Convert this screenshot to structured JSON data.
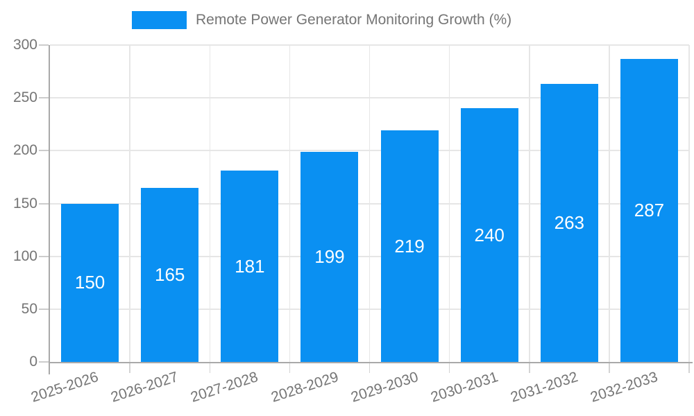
{
  "chart_data": {
    "type": "bar",
    "title": "Remote Power Generator Monitoring Growth (%)",
    "categories": [
      "2025-2026",
      "2026-2027",
      "2027-2028",
      "2028-2029",
      "2029-2030",
      "2030-2031",
      "2031-2032",
      "2032-2033"
    ],
    "values": [
      150,
      165,
      181,
      199,
      219,
      240,
      263,
      287
    ],
    "xlabel": "",
    "ylabel": "",
    "ylim": [
      0,
      300
    ],
    "ytick_step": 50,
    "yticks": [
      0,
      50,
      100,
      150,
      200,
      250,
      300
    ],
    "grid": true,
    "legend_position": "top-center",
    "x_label_rotation_deg": -18,
    "colors": {
      "bar": "#0a90f2",
      "value_label": "#ffffff",
      "axis_text": "#757575",
      "grid_line": "#e6e6e6",
      "axis_line": "#a9a9a9",
      "y_tick": "#cccccc",
      "x_tick": "#d4d4d4",
      "background": "#ffffff"
    }
  }
}
